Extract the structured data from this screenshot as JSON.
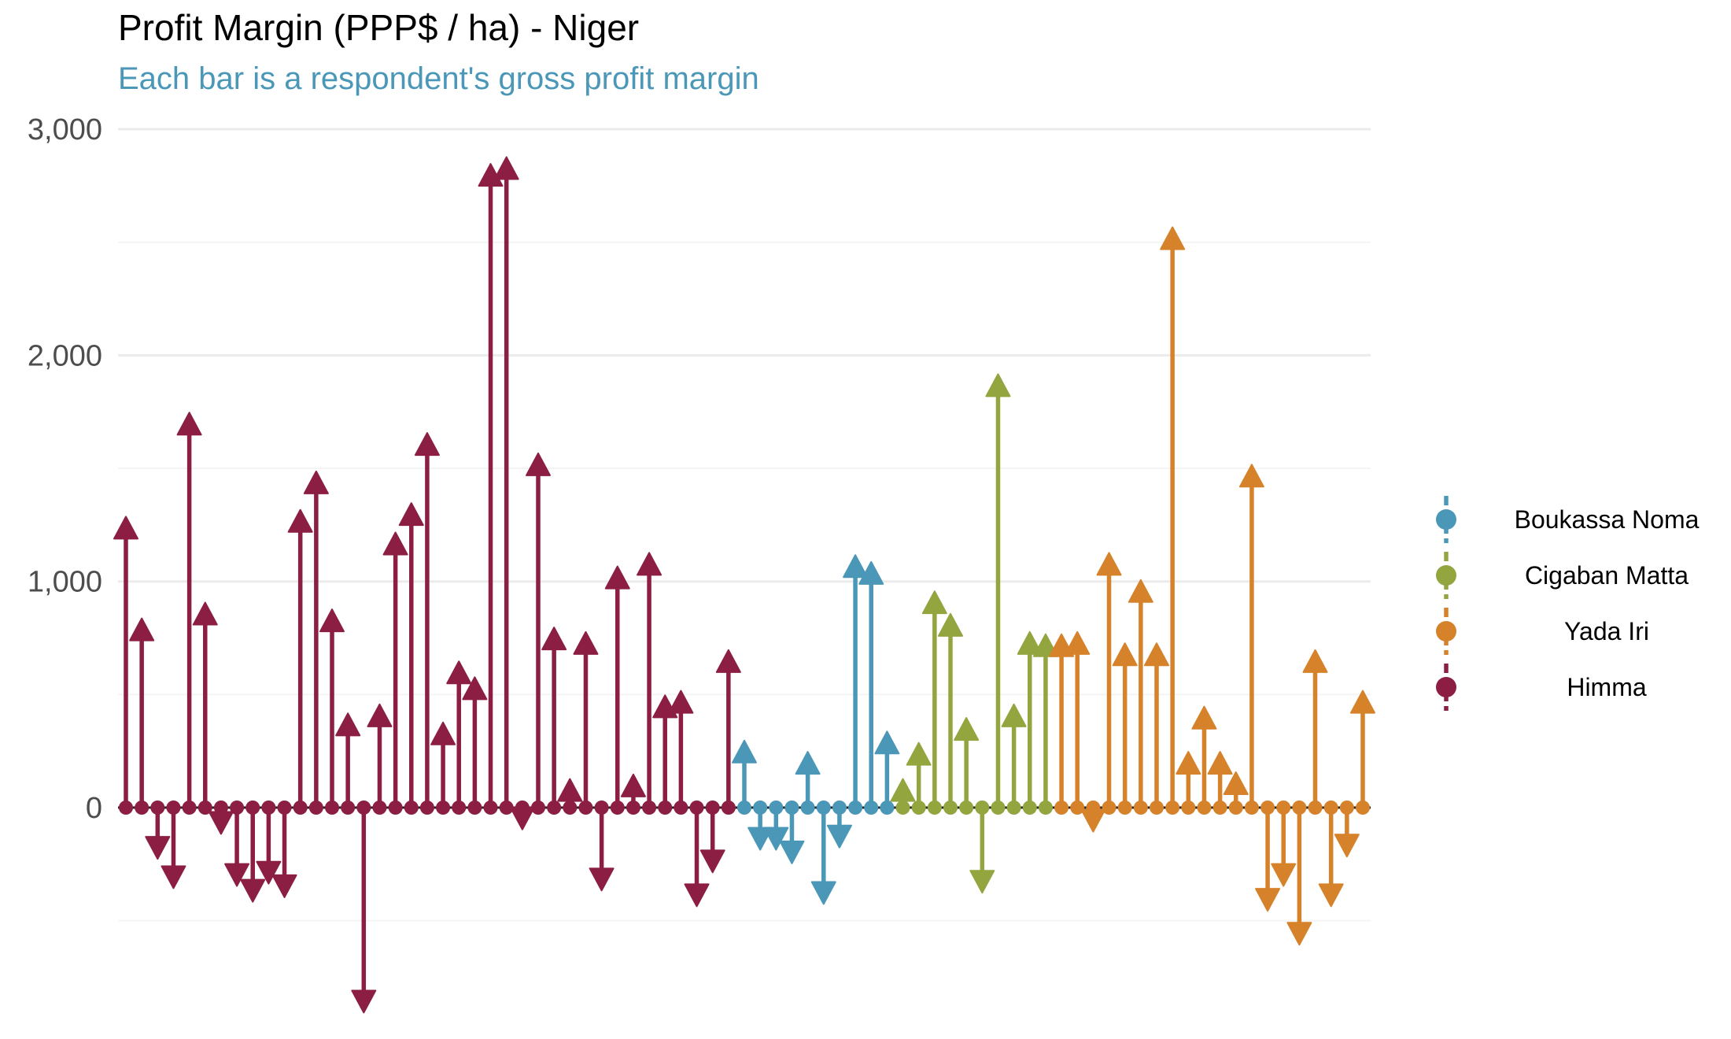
{
  "chart_data": {
    "type": "bar",
    "title": "Profit Margin (PPP$ / ha) - Niger",
    "subtitle": "Each bar is a respondent's gross profit margin",
    "ylim": [
      -850,
      3000
    ],
    "yticks": [
      0,
      1000,
      2000,
      3000
    ],
    "ytick_labels": [
      "0",
      "1,000",
      "2,000",
      "3,000"
    ],
    "grid": true,
    "legend_position": "right",
    "series": [
      {
        "name": "Himma",
        "color": "#8b1e42",
        "values": [
          1210,
          760,
          -150,
          -280,
          1670,
          830,
          -40,
          -270,
          -340,
          -260,
          -320,
          1240,
          1410,
          800,
          340,
          -830,
          380,
          1140,
          1270,
          1580,
          300,
          570,
          500,
          2770,
          2800,
          -20,
          1490,
          720,
          50,
          700,
          -290,
          990,
          70,
          1050,
          420,
          440,
          -360,
          -210,
          620
        ]
      },
      {
        "name": "Boukassa Noma",
        "color": "#4a97b8",
        "values": [
          220,
          -110,
          -110,
          -170,
          170,
          -350,
          -100,
          1040,
          1010,
          260
        ]
      },
      {
        "name": "Cigaban Matta",
        "color": "#92a53f",
        "values": [
          50,
          210,
          880,
          780,
          320,
          -300,
          1840,
          380,
          700,
          690
        ]
      },
      {
        "name": "Yada Iri",
        "color": "#d6822b",
        "values": [
          690,
          700,
          -30,
          1050,
          650,
          930,
          650,
          2490,
          170,
          370,
          170,
          80,
          1440,
          -380,
          -270,
          -530,
          620,
          -360,
          -140,
          440
        ]
      }
    ],
    "legend_order": [
      "Boukassa Noma",
      "Cigaban Matta",
      "Yada Iri",
      "Himma"
    ]
  }
}
